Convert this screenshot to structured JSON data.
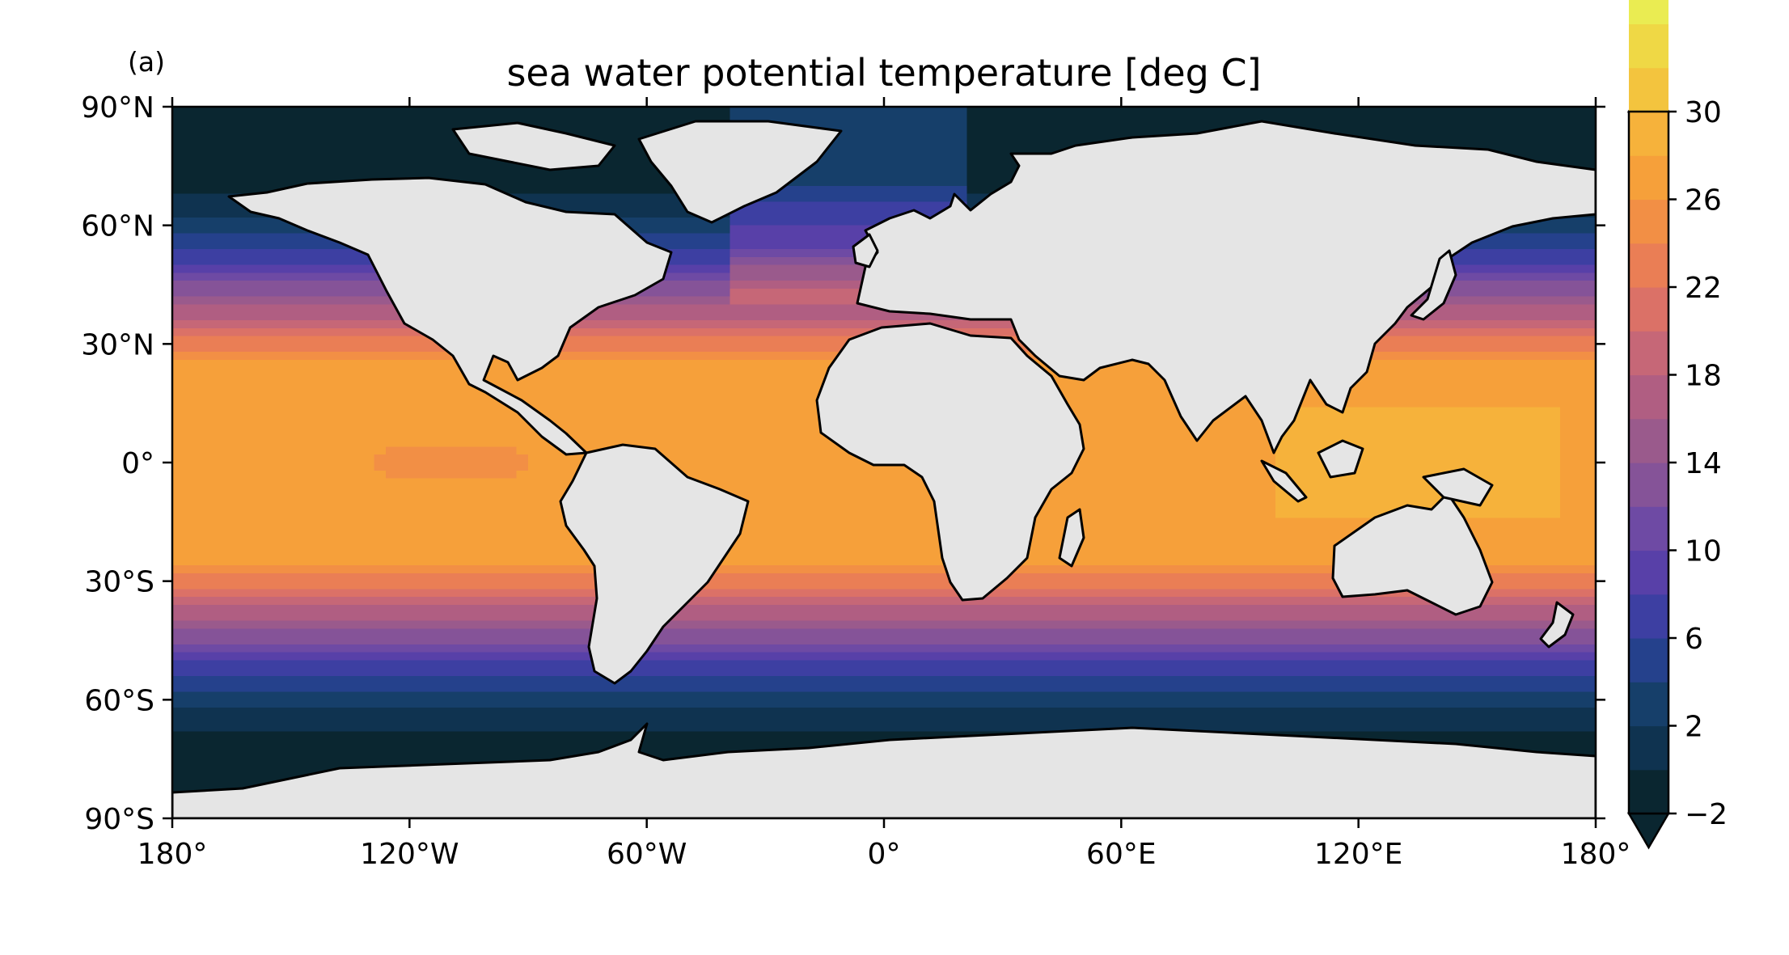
{
  "panel_label": "(a)",
  "title": "sea water potential temperature [deg C]",
  "chart_data": {
    "type": "heatmap",
    "title": "sea water potential temperature [deg C]",
    "variable": "sea water potential temperature",
    "units": "deg C",
    "projection": "equirectangular (PlateCarree)",
    "lon_range": [
      -180,
      180
    ],
    "lat_range": [
      -90,
      90
    ],
    "x_ticks": [
      "180°",
      "120°W",
      "60°W",
      "0°",
      "60°E",
      "120°E",
      "180°"
    ],
    "x_tick_values": [
      -180,
      -120,
      -60,
      0,
      60,
      120,
      180
    ],
    "y_ticks": [
      "90°N",
      "60°N",
      "30°N",
      "0°",
      "30°S",
      "60°S",
      "90°S"
    ],
    "y_tick_values": [
      90,
      60,
      30,
      0,
      -30,
      -60,
      -90
    ],
    "colorbar": {
      "min": -2,
      "max": 30,
      "step": 2,
      "extend": "both",
      "tick_values": [
        -2,
        2,
        6,
        10,
        14,
        18,
        22,
        26,
        30
      ],
      "tick_labels": [
        "−2",
        "2",
        "6",
        "10",
        "14",
        "18",
        "22",
        "26",
        "30"
      ],
      "colormap": "thermal",
      "colors": [
        "#0a2630",
        "#0f3350",
        "#163f6a",
        "#25418c",
        "#3d3fa2",
        "#5840a8",
        "#6e4aa4",
        "#855398",
        "#9a5a8c",
        "#b05e82",
        "#c66777",
        "#db7167",
        "#ea7e55",
        "#f28f45",
        "#f6a03a",
        "#f6b23b",
        "#f3c43e",
        "#efd845",
        "#eaec52",
        "#e3f65c"
      ]
    },
    "land_color": "#e5e5e5",
    "features": [
      "coastlines"
    ]
  }
}
